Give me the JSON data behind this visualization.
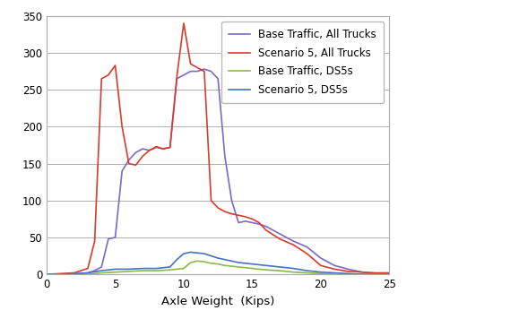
{
  "title": "",
  "xlabel": "Axle Weight  (Kips)",
  "ylabel": "",
  "xlim": [
    0,
    25
  ],
  "ylim": [
    0,
    350
  ],
  "yticks": [
    0,
    50,
    100,
    150,
    200,
    250,
    300,
    350
  ],
  "xticks": [
    0,
    5,
    10,
    15,
    20,
    25
  ],
  "series": {
    "base_all": {
      "label": "Base Traffic, All Trucks",
      "color": "#7b68c8",
      "linewidth": 1.2,
      "x": [
        0,
        1,
        2,
        3,
        3.5,
        4,
        4.5,
        5,
        5.5,
        6,
        6.5,
        7,
        7.5,
        8,
        8.5,
        9,
        9.5,
        10,
        10.5,
        11,
        11.5,
        12,
        12.5,
        13,
        13.5,
        14,
        14.5,
        15,
        15.5,
        16,
        17,
        18,
        19,
        20,
        21,
        22,
        23,
        24,
        25
      ],
      "y": [
        0,
        0,
        0,
        2,
        5,
        10,
        48,
        50,
        140,
        155,
        165,
        170,
        168,
        172,
        170,
        172,
        265,
        270,
        275,
        275,
        278,
        275,
        265,
        160,
        100,
        70,
        72,
        70,
        68,
        65,
        55,
        45,
        37,
        22,
        12,
        7,
        3,
        1,
        0
      ]
    },
    "scen5_all": {
      "label": "Scenario 5, All Trucks",
      "color": "#d93b2b",
      "linewidth": 1.2,
      "x": [
        0,
        1,
        2,
        3,
        3.5,
        4,
        4.5,
        5,
        5.5,
        6,
        6.5,
        7,
        7.5,
        8,
        8.5,
        9,
        9.5,
        10,
        10.5,
        11,
        11.5,
        12,
        12.5,
        13,
        13.5,
        14,
        14.5,
        15,
        15.5,
        16,
        17,
        18,
        19,
        20,
        21,
        22,
        23,
        24,
        25
      ],
      "y": [
        0,
        1,
        2,
        8,
        45,
        265,
        270,
        283,
        200,
        150,
        148,
        160,
        168,
        173,
        170,
        172,
        268,
        340,
        285,
        280,
        275,
        100,
        90,
        85,
        82,
        80,
        78,
        75,
        70,
        60,
        48,
        40,
        28,
        12,
        7,
        4,
        3,
        2,
        2
      ]
    },
    "base_ds5": {
      "label": "Base Traffic, DS5s",
      "color": "#8bb84a",
      "linewidth": 1.2,
      "x": [
        0,
        1,
        2,
        3,
        4,
        5,
        6,
        7,
        8,
        9,
        10,
        10.5,
        11,
        11.5,
        12,
        12.5,
        13,
        13.5,
        14,
        15,
        16,
        17,
        18,
        19,
        20,
        21,
        22,
        23,
        24,
        25
      ],
      "y": [
        0,
        0,
        0,
        0,
        2,
        3,
        4,
        5,
        5,
        6,
        8,
        16,
        18,
        17,
        15,
        14,
        12,
        11,
        10,
        8,
        6,
        5,
        3,
        2,
        1,
        0,
        0,
        0,
        0,
        0
      ]
    },
    "scen5_ds5": {
      "label": "Scenario 5, DS5s",
      "color": "#4472c4",
      "linewidth": 1.2,
      "x": [
        0,
        1,
        2,
        3,
        4,
        5,
        6,
        7,
        8,
        9,
        9.5,
        10,
        10.5,
        11,
        11.5,
        12,
        12.5,
        13,
        13.5,
        14,
        14.5,
        15,
        15.5,
        16,
        17,
        18,
        19,
        20,
        21,
        22,
        23,
        24,
        25
      ],
      "y": [
        0,
        0,
        1,
        2,
        5,
        7,
        7,
        8,
        8,
        10,
        20,
        28,
        30,
        29,
        28,
        25,
        22,
        20,
        18,
        16,
        15,
        14,
        13,
        12,
        10,
        8,
        5,
        3,
        2,
        1,
        0,
        0,
        0
      ]
    }
  },
  "background_color": "#ffffff",
  "grid_color": "#b0b0b0",
  "legend_fontsize": 8.5,
  "axis_fontsize": 9.5,
  "tick_fontsize": 8.5
}
